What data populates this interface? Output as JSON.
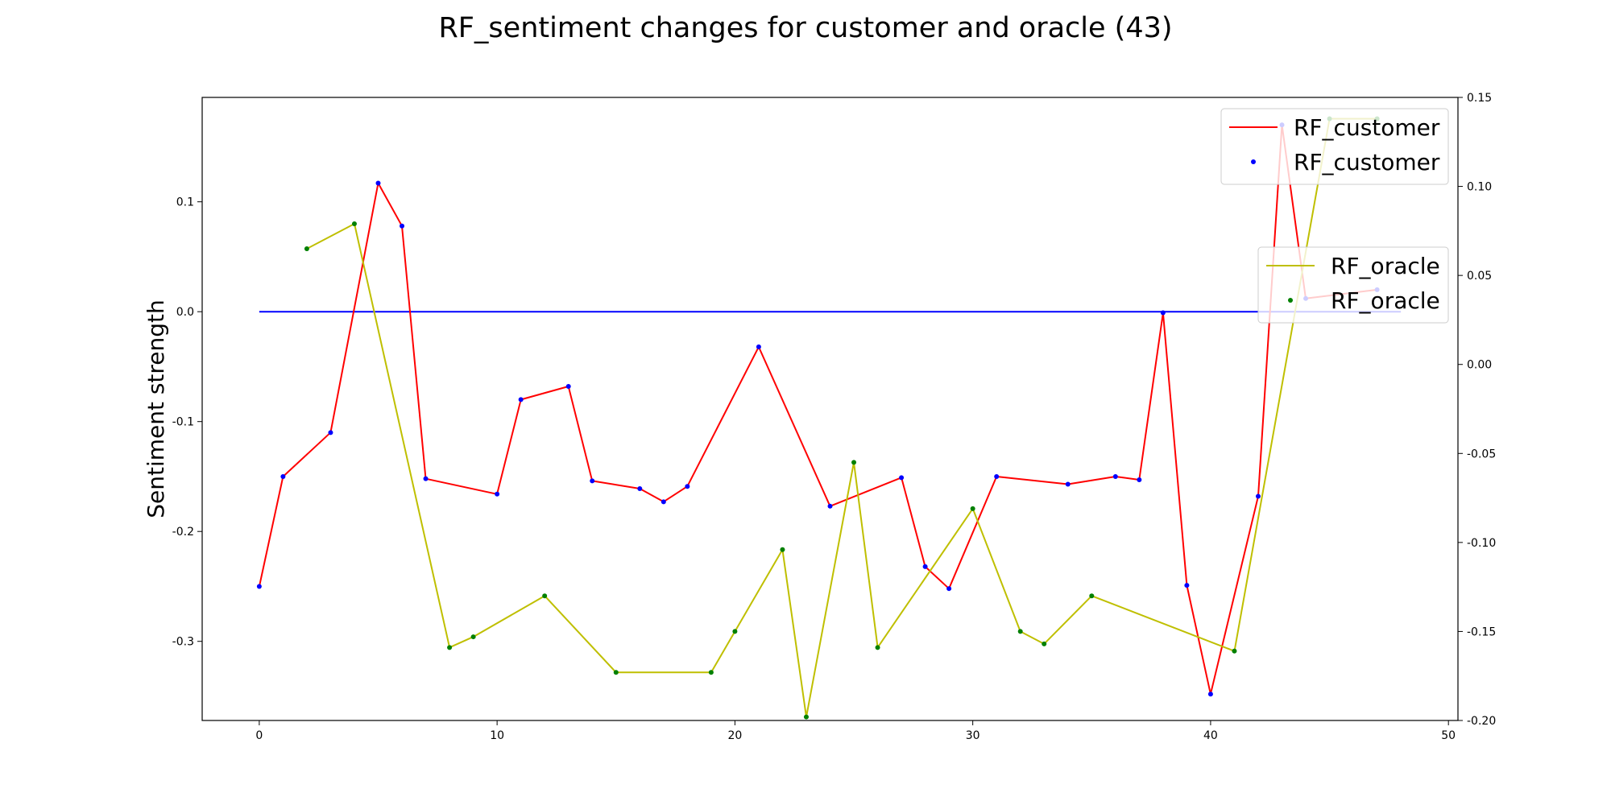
{
  "chart_data": {
    "type": "line",
    "title": "RF_sentiment changes for customer and oracle (43)",
    "ylabel": "Sentiment strength",
    "xlabel": "",
    "xlim": [
      -2.4,
      50.4
    ],
    "ylim": [
      -0.372,
      0.195
    ],
    "y2lim": [
      -0.2,
      0.15
    ],
    "x_ticks": [
      0,
      10,
      20,
      30,
      40,
      50
    ],
    "x_tick_labels": [
      "0",
      "10",
      "20",
      "30",
      "40",
      "50"
    ],
    "y_ticks": [
      -0.3,
      -0.2,
      -0.1,
      0.0,
      0.1
    ],
    "y_tick_labels": [
      "-0.3",
      "-0.2",
      "-0.1",
      "0.0",
      "0.1"
    ],
    "y2_ticks": [
      -0.2,
      -0.15,
      -0.1,
      -0.05,
      0.0,
      0.05,
      0.1,
      0.15
    ],
    "y2_tick_labels": [
      "-0.20",
      "-0.15",
      "-0.10",
      "-0.05",
      "0.00",
      "0.05",
      "0.10",
      "0.15"
    ],
    "zero_line": {
      "y": 0.0,
      "x_from": 0,
      "x_to": 48,
      "color": "#0000ff"
    },
    "series": [
      {
        "name": "RF_customer",
        "axis": "left",
        "line_color": "#ff0000",
        "marker_color": "#0000ff",
        "x": [
          0,
          1,
          3,
          5,
          6,
          7,
          10,
          11,
          13,
          14,
          16,
          17,
          18,
          21,
          24,
          27,
          28,
          29,
          31,
          34,
          36,
          37,
          38,
          39,
          40,
          42,
          43,
          44,
          47
        ],
        "y": [
          -0.25,
          -0.15,
          -0.11,
          0.117,
          0.078,
          -0.152,
          -0.166,
          -0.08,
          -0.068,
          -0.154,
          -0.161,
          -0.173,
          -0.159,
          -0.032,
          -0.177,
          -0.151,
          -0.232,
          -0.252,
          -0.15,
          -0.157,
          -0.15,
          -0.153,
          -0.001,
          -0.249,
          -0.348,
          -0.168,
          0.17,
          0.012,
          0.02
        ]
      },
      {
        "name": "RF_oracle",
        "axis": "right",
        "line_color": "#bfbf00",
        "marker_color": "#008000",
        "x": [
          2,
          4,
          8,
          9,
          12,
          15,
          19,
          20,
          22,
          23,
          25,
          26,
          30,
          32,
          33,
          35,
          41,
          45,
          47
        ],
        "y": [
          0.065,
          0.079,
          -0.159,
          -0.153,
          -0.13,
          -0.173,
          -0.173,
          -0.15,
          -0.104,
          -0.198,
          -0.055,
          -0.159,
          -0.081,
          -0.15,
          -0.157,
          -0.13,
          -0.161,
          0.138,
          0.138
        ]
      }
    ],
    "legends": [
      {
        "placement": "top-right",
        "entries": [
          {
            "label": "RF_customer",
            "kind": "line"
          },
          {
            "label": "RF_customer",
            "kind": "marker"
          }
        ]
      },
      {
        "placement": "center-right",
        "entries": [
          {
            "label": "RF_oracle",
            "kind": "line"
          },
          {
            "label": "RF_oracle",
            "kind": "marker"
          }
        ]
      }
    ]
  }
}
